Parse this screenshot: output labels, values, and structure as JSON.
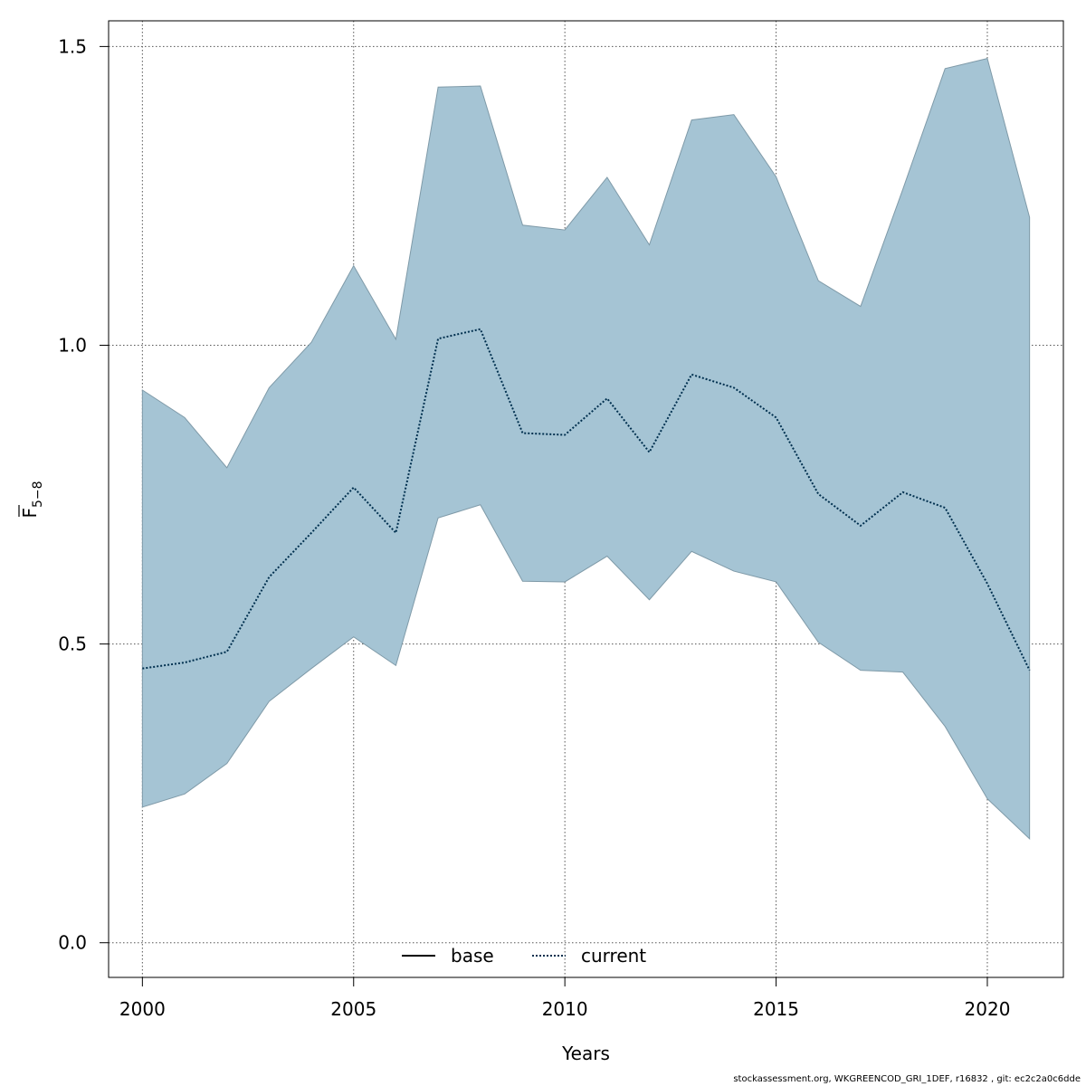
{
  "chart_data": {
    "type": "area",
    "xlabel": "Years",
    "ylabel": {
      "main": "F",
      "sub": "5−8"
    },
    "xlim": [
      1999.2,
      2021.8
    ],
    "ylim": [
      -0.058,
      1.543
    ],
    "x_ticks": [
      2000,
      2005,
      2010,
      2015,
      2020
    ],
    "y_ticks": [
      0.0,
      0.5,
      1.0,
      1.5
    ],
    "y_tick_labels": [
      "0.0",
      "0.5",
      "1.0",
      "1.5"
    ],
    "grid": true,
    "legend": {
      "position": "bottom-center",
      "entries": [
        {
          "label": "base",
          "style": "solid",
          "color": "#000000"
        },
        {
          "label": "current",
          "style": "dotted",
          "color": "#00304f"
        }
      ]
    },
    "band_color": "#a5c4d4",
    "band_edge_color": "#7f9aa8",
    "years": [
      2000,
      2001,
      2002,
      2003,
      2004,
      2005,
      2006,
      2007,
      2008,
      2009,
      2010,
      2011,
      2012,
      2013,
      2014,
      2015,
      2016,
      2017,
      2018,
      2019,
      2020,
      2021
    ],
    "series": [
      {
        "name": "current",
        "values": [
          0.459,
          0.469,
          0.487,
          0.612,
          0.686,
          0.762,
          0.686,
          1.011,
          1.027,
          0.853,
          0.85,
          0.911,
          0.821,
          0.951,
          0.929,
          0.879,
          0.751,
          0.698,
          0.754,
          0.728,
          0.601,
          0.456
        ]
      }
    ],
    "band": {
      "lower": [
        0.227,
        0.249,
        0.3,
        0.404,
        0.459,
        0.512,
        0.464,
        0.711,
        0.733,
        0.605,
        0.604,
        0.647,
        0.574,
        0.655,
        0.622,
        0.604,
        0.503,
        0.456,
        0.453,
        0.362,
        0.241,
        0.174
      ],
      "upper": [
        0.925,
        0.879,
        0.795,
        0.929,
        1.005,
        1.133,
        1.01,
        1.432,
        1.434,
        1.201,
        1.193,
        1.281,
        1.168,
        1.377,
        1.386,
        1.282,
        1.108,
        1.065,
        1.261,
        1.463,
        1.48,
        1.214
      ]
    }
  },
  "footer": "stockassessment.org, WKGREENCOD_GRI_1DEF, r16832 , git: ec2c2a0c6dde"
}
